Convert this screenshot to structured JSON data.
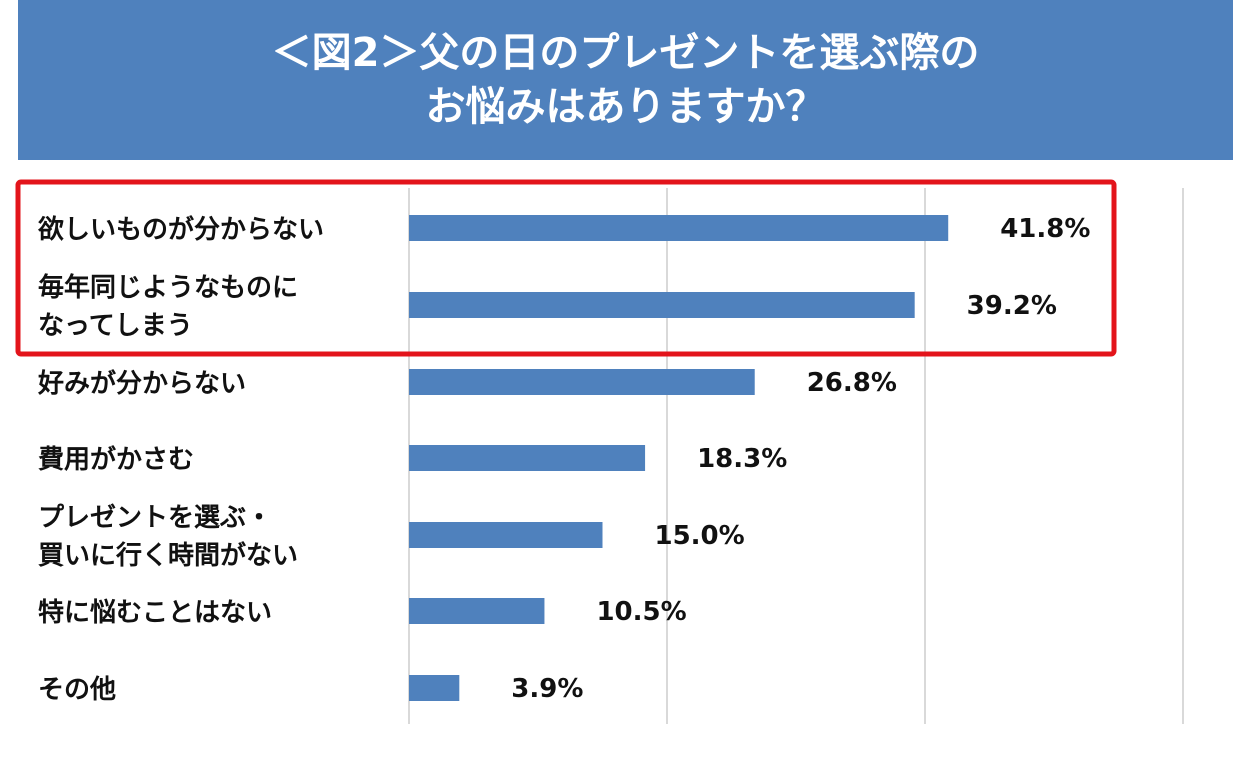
{
  "title": {
    "line1": "＜図2＞父の日のプレゼントを選ぶ際の",
    "line2": "お悩みはありますか？"
  },
  "colors": {
    "banner": "#4f81bd",
    "bar": "#4f81bd",
    "highlight": "#e3141b",
    "grid": "#d9d9d9"
  },
  "chart_data": {
    "type": "bar",
    "orientation": "horizontal",
    "categories": [
      [
        "欲しいものが分からない"
      ],
      [
        "毎年同じようなものに",
        "なってしまう"
      ],
      [
        "好みが分からない"
      ],
      [
        "費用がかさむ"
      ],
      [
        "プレゼントを選ぶ・",
        "買いに行く時間がない"
      ],
      [
        "特に悩むことはない"
      ],
      [
        "その他"
      ]
    ],
    "values": [
      41.8,
      39.2,
      26.8,
      18.3,
      15.0,
      10.5,
      3.9
    ],
    "value_labels": [
      "41.8%",
      "39.2%",
      "26.8%",
      "18.3%",
      "15.0%",
      "10.5%",
      "3.9%"
    ],
    "unit": "%",
    "xlim": [
      0,
      60
    ],
    "grid": true,
    "highlighted_categories": [
      0,
      1
    ]
  }
}
